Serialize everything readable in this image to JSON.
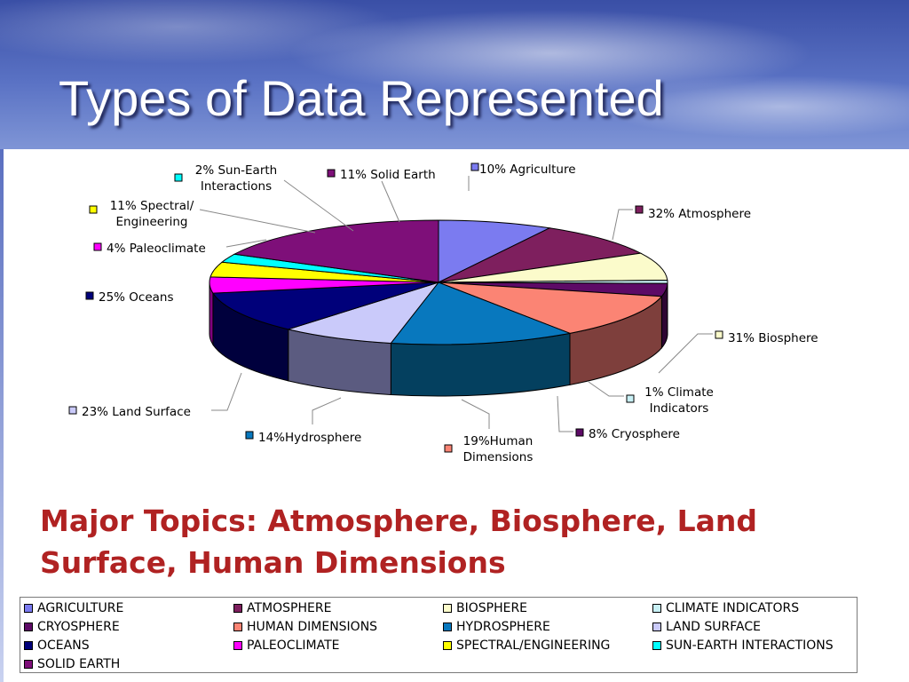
{
  "slide": {
    "title": "Types of Data Represented",
    "topics_line1": "Major Topics: Atmosphere, Biosphere, Land",
    "topics_line2": "Surface, Human Dimensions"
  },
  "chart_data": {
    "type": "pie",
    "is_3d": true,
    "title": "",
    "slices": [
      {
        "name": "AGRICULTURE",
        "value": 10,
        "label": "10% Agriculture",
        "color": "#7b7bf0",
        "side": "#4d4d96"
      },
      {
        "name": "ATMOSPHERE",
        "value": 32,
        "label": "32% Atmosphere",
        "color": "#7e1f5e",
        "side": "#4f1339"
      },
      {
        "name": "BIOSPHERE",
        "value": 31,
        "label": "31% Biosphere",
        "color": "#fbfbcb",
        "side": "#807f5c"
      },
      {
        "name": "CLIMATE INDICATORS",
        "value": 1,
        "label": "1% Climate Indicators",
        "color": "#c8f0f5",
        "side": "#5d7f82"
      },
      {
        "name": "CRYOSPHERE",
        "value": 8,
        "label": "8% Cryosphere",
        "color": "#5d0a66",
        "side": "#2e0533"
      },
      {
        "name": "HUMAN DIMENSIONS",
        "value": 19,
        "label": "19%Human Dimensions",
        "color": "#fb8474",
        "side": "#7e3f3c"
      },
      {
        "name": "HYDROSPHERE",
        "value": 14,
        "label": "14%Hydrosphere",
        "color": "#0878be",
        "side": "#04405f"
      },
      {
        "name": "LAND SURFACE",
        "value": 23,
        "label": "23% Land Surface",
        "color": "#cacafa",
        "side": "#5b5b80"
      },
      {
        "name": "OCEANS",
        "value": 25,
        "label": "25% Oceans",
        "color": "#00007a",
        "side": "#00003d"
      },
      {
        "name": "PALEOCLIMATE",
        "value": 4,
        "label": "4% Paleoclimate",
        "color": "#ff00ff",
        "side": "#800080"
      },
      {
        "name": "SPECTRAL/ENGINEERING",
        "value": 11,
        "label": "11% Spectral/ Engineering",
        "color": "#ffff00",
        "side": "#808000"
      },
      {
        "name": "SUN-EARTH INTERACTIONS",
        "value": 2,
        "label": "2% Sun-Earth Interactions",
        "color": "#00ffff",
        "side": "#008080"
      },
      {
        "name": "SOLID EARTH",
        "value": 11,
        "label": "11% Solid Earth",
        "color": "#7e0f79",
        "side": "#40083d"
      }
    ],
    "legend_position": "bottom"
  }
}
